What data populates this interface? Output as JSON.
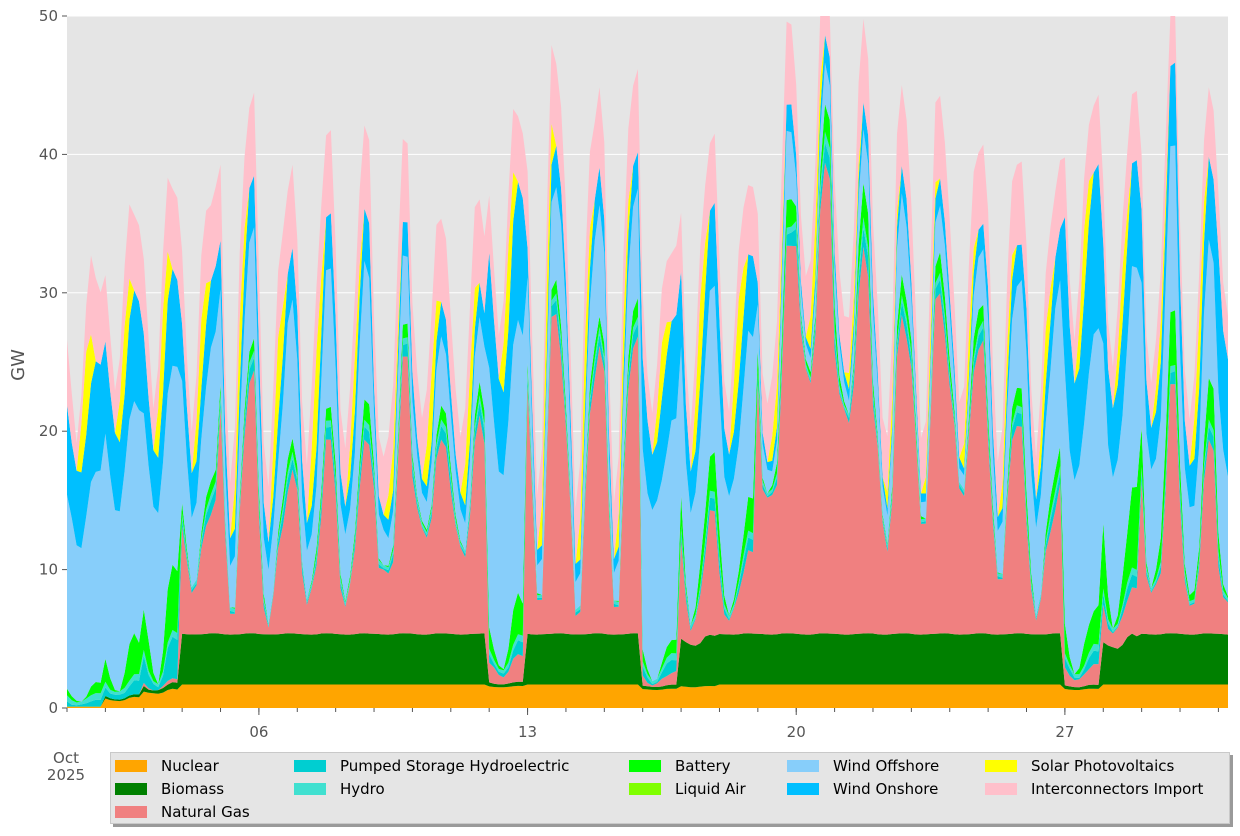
{
  "chart_data": {
    "type": "area",
    "stacked": true,
    "ylabel": "GW",
    "ylim": [
      0,
      50
    ],
    "yticks": [
      0,
      10,
      20,
      30,
      40,
      50
    ],
    "xlim": [
      1,
      31.25
    ],
    "xticks": [
      {
        "day": 6,
        "label": "06"
      },
      {
        "day": 13,
        "label": "13"
      },
      {
        "day": 20,
        "label": "20"
      },
      {
        "day": 27,
        "label": "27"
      }
    ],
    "x_extra_label": {
      "month": "Oct",
      "year": "2025"
    },
    "grid": true,
    "legend_position": "bottom",
    "days": [
      1,
      2,
      3,
      4,
      5,
      6,
      7,
      8,
      9,
      10,
      11,
      12,
      13,
      14,
      15,
      16,
      17,
      18,
      19,
      20,
      21,
      22,
      23,
      24,
      25,
      26,
      27,
      28,
      29,
      30,
      31
    ],
    "series": [
      {
        "name": "Nuclear",
        "color": "#ffa500",
        "daily_low": [
          0.1,
          0.5,
          1.0,
          1.7,
          1.7,
          1.7,
          1.7,
          1.7,
          1.7,
          1.7,
          1.7,
          1.5,
          1.7,
          1.7,
          1.7,
          1.3,
          1.5,
          1.7,
          1.7,
          1.7,
          1.7,
          1.7,
          1.7,
          1.7,
          1.7,
          1.7,
          1.3,
          1.7,
          1.7,
          1.7,
          1.7
        ],
        "daily_high": [
          0.1,
          0.8,
          1.4,
          1.7,
          1.7,
          1.7,
          1.7,
          1.7,
          1.7,
          1.7,
          1.7,
          1.6,
          1.7,
          1.7,
          1.7,
          1.4,
          1.6,
          1.7,
          1.7,
          1.7,
          1.7,
          1.7,
          1.7,
          1.7,
          1.7,
          1.7,
          1.4,
          1.7,
          1.7,
          1.7,
          1.7
        ]
      },
      {
        "name": "Biomass",
        "color": "#008000",
        "daily_low": [
          0.0,
          0.1,
          0.2,
          3.6,
          3.6,
          3.6,
          3.6,
          3.6,
          3.6,
          3.6,
          3.6,
          0.2,
          3.6,
          3.6,
          3.6,
          0.2,
          3.0,
          3.6,
          3.6,
          3.6,
          3.6,
          3.6,
          3.6,
          3.6,
          3.6,
          3.6,
          0.2,
          2.5,
          3.6,
          3.6,
          3.6
        ],
        "daily_high": [
          0.0,
          0.2,
          0.5,
          3.7,
          3.7,
          3.7,
          3.7,
          3.7,
          3.7,
          3.7,
          3.7,
          0.3,
          3.7,
          3.7,
          3.7,
          0.3,
          3.7,
          3.7,
          3.7,
          3.7,
          3.7,
          3.7,
          3.7,
          3.7,
          3.7,
          3.7,
          0.3,
          3.7,
          3.7,
          3.7,
          3.7
        ]
      },
      {
        "name": "Natural Gas",
        "color": "#f08080",
        "daily_low": [
          0.0,
          0.0,
          0.0,
          3.0,
          1.5,
          0.5,
          1.5,
          2.0,
          1.0,
          7.0,
          5.0,
          0.5,
          2.5,
          1.0,
          2.0,
          0.1,
          1.0,
          1.0,
          6.0,
          18.0,
          14.0,
          6.0,
          8.0,
          10.0,
          4.0,
          1.0,
          0.5,
          1.0,
          0.5,
          1.5,
          0.5
        ],
        "daily_high": [
          0.0,
          0.0,
          0.3,
          10.0,
          19.0,
          12.0,
          14.0,
          14.0,
          20.0,
          14.0,
          16.0,
          2.0,
          25.0,
          22.0,
          22.0,
          1.0,
          9.0,
          6.0,
          28.0,
          34.0,
          28.0,
          23.0,
          26.0,
          22.0,
          16.0,
          11.0,
          1.5,
          3.5,
          18.0,
          14.0,
          10.0
        ]
      },
      {
        "name": "Pumped Storage Hydroelectric",
        "color": "#00ced1",
        "daily_low": [
          0.1,
          0.2,
          0.2,
          0.1,
          0.1,
          0.1,
          0.1,
          0.1,
          0.1,
          0.1,
          0.1,
          0.1,
          0.1,
          0.1,
          0.1,
          0.1,
          0.1,
          0.1,
          0.1,
          0.1,
          0.1,
          0.1,
          0.1,
          0.1,
          0.1,
          0.1,
          0.1,
          0.1,
          0.1,
          0.1,
          0.1
        ],
        "daily_high": [
          0.5,
          1.0,
          3.0,
          1.0,
          1.0,
          1.0,
          1.0,
          1.0,
          1.0,
          1.0,
          1.0,
          1.0,
          1.0,
          1.0,
          1.0,
          1.0,
          1.0,
          1.0,
          1.0,
          1.5,
          1.5,
          1.0,
          1.0,
          1.0,
          1.0,
          1.0,
          1.0,
          1.0,
          1.0,
          1.0,
          1.0
        ]
      },
      {
        "name": "Hydro",
        "color": "#40e0d0",
        "daily_low": [
          0.2,
          0.2,
          0.2,
          0.2,
          0.2,
          0.2,
          0.2,
          0.2,
          0.2,
          0.2,
          0.2,
          0.2,
          0.2,
          0.2,
          0.2,
          0.2,
          0.2,
          0.2,
          0.2,
          0.2,
          0.2,
          0.2,
          0.2,
          0.2,
          0.2,
          0.2,
          0.2,
          0.2,
          0.2,
          0.2,
          0.2
        ],
        "daily_high": [
          0.5,
          0.5,
          0.5,
          0.5,
          0.5,
          0.5,
          0.5,
          0.5,
          0.5,
          0.5,
          0.5,
          0.5,
          0.5,
          0.5,
          0.5,
          0.5,
          0.5,
          0.5,
          0.5,
          0.8,
          0.8,
          0.5,
          0.5,
          0.5,
          0.5,
          0.5,
          0.5,
          0.5,
          0.5,
          0.5,
          0.5
        ]
      },
      {
        "name": "Battery",
        "color": "#00ff00",
        "daily_low": [
          0.0,
          0.0,
          0.0,
          0.0,
          0.0,
          0.0,
          0.0,
          0.0,
          0.0,
          0.0,
          0.0,
          0.0,
          0.0,
          0.0,
          0.0,
          0.0,
          0.0,
          0.0,
          0.0,
          0.0,
          0.0,
          0.0,
          0.0,
          0.0,
          0.0,
          0.0,
          0.0,
          0.0,
          0.0,
          0.0,
          0.0
        ],
        "daily_high": [
          0.8,
          3.0,
          5.0,
          1.0,
          1.0,
          1.0,
          1.0,
          1.5,
          1.0,
          1.0,
          1.0,
          3.0,
          1.0,
          1.0,
          1.5,
          1.0,
          3.0,
          2.5,
          2.0,
          2.0,
          2.5,
          1.5,
          1.5,
          1.5,
          1.5,
          1.5,
          3.0,
          6.0,
          4.0,
          3.0,
          2.0
        ]
      },
      {
        "name": "Liquid Air",
        "color": "#7fff00",
        "daily_low": [
          0,
          0,
          0,
          0,
          0,
          0,
          0,
          0,
          0,
          0,
          0,
          0,
          0,
          0,
          0,
          0,
          0,
          0,
          0,
          0,
          0,
          0,
          0,
          0,
          0,
          0,
          0,
          0,
          0,
          0,
          0
        ],
        "daily_high": [
          0,
          0,
          0,
          0,
          0,
          0,
          0,
          0,
          0,
          0,
          0,
          0,
          0,
          0,
          0,
          0,
          0,
          0,
          0,
          0,
          0,
          0,
          0,
          0,
          0,
          0,
          0,
          0,
          0,
          0,
          0
        ]
      },
      {
        "name": "Wind Offshore",
        "color": "#87cefa",
        "daily_low": [
          11.0,
          13.0,
          12.0,
          5.0,
          3.0,
          3.0,
          3.0,
          4.0,
          2.0,
          2.0,
          2.0,
          14.0,
          2.0,
          2.0,
          2.0,
          12.0,
          8.0,
          8.0,
          1.0,
          1.0,
          1.0,
          2.0,
          1.0,
          1.0,
          3.0,
          6.0,
          14.0,
          10.0,
          8.0,
          6.0,
          8.0
        ],
        "daily_high": [
          16.0,
          17.0,
          15.0,
          10.0,
          8.0,
          10.0,
          10.0,
          10.0,
          5.0,
          5.0,
          5.0,
          20.0,
          8.0,
          8.0,
          8.0,
          16.0,
          12.0,
          12.0,
          5.0,
          3.0,
          4.0,
          6.0,
          4.0,
          4.0,
          8.0,
          12.0,
          20.0,
          16.0,
          12.0,
          10.0,
          12.0
        ]
      },
      {
        "name": "Wind Onshore",
        "color": "#00bfff",
        "daily_low": [
          5.0,
          5.0,
          4.0,
          3.0,
          2.0,
          2.0,
          2.0,
          2.0,
          1.0,
          1.0,
          1.0,
          6.0,
          1.0,
          1.0,
          1.0,
          4.0,
          3.0,
          3.0,
          0.5,
          0.5,
          0.5,
          0.5,
          0.5,
          0.5,
          1.0,
          2.0,
          7.0,
          5.0,
          3.0,
          3.0,
          8.0
        ],
        "daily_high": [
          8.0,
          8.0,
          7.0,
          5.0,
          4.0,
          4.0,
          4.0,
          4.0,
          2.5,
          2.5,
          2.5,
          10.0,
          3.0,
          3.0,
          3.0,
          8.0,
          6.0,
          6.0,
          2.0,
          2.0,
          2.0,
          2.0,
          2.0,
          2.0,
          3.0,
          4.0,
          12.0,
          8.0,
          6.0,
          6.0,
          12.0
        ]
      },
      {
        "name": "Solar Photovoltaics",
        "color": "#ffff00",
        "daily_low": [
          0,
          0,
          0,
          0,
          0,
          0,
          0,
          0,
          0,
          0,
          0,
          0,
          0,
          0,
          0,
          0,
          0,
          0,
          0,
          0,
          0,
          0,
          0,
          0,
          0,
          0,
          0,
          0,
          0,
          0,
          0
        ],
        "daily_high": [
          6.0,
          5.0,
          6.0,
          5.0,
          5.0,
          6.0,
          7.0,
          4.0,
          3.0,
          5.0,
          5.0,
          6.0,
          5.0,
          5.0,
          4.0,
          4.0,
          6.0,
          6.0,
          3.0,
          4.0,
          2.0,
          2.0,
          2.0,
          3.0,
          3.0,
          4.0,
          5.0,
          4.0,
          3.0,
          5.0,
          5.0
        ]
      },
      {
        "name": "Interconnectors Import",
        "color": "#ffc0cb",
        "daily_low": [
          2.0,
          3.0,
          3.0,
          3.0,
          4.0,
          4.0,
          4.0,
          4.0,
          4.0,
          4.0,
          4.0,
          3.0,
          4.0,
          4.0,
          4.0,
          3.0,
          3.0,
          3.0,
          4.0,
          4.0,
          4.0,
          4.0,
          4.0,
          4.0,
          4.0,
          3.0,
          3.0,
          3.0,
          3.0,
          3.0,
          3.0
        ],
        "daily_high": [
          6.0,
          6.0,
          6.0,
          6.0,
          6.0,
          6.0,
          6.0,
          6.0,
          6.0,
          6.0,
          6.0,
          5.0,
          6.0,
          6.0,
          6.0,
          5.0,
          5.0,
          5.0,
          6.0,
          6.0,
          6.0,
          6.0,
          6.0,
          6.0,
          6.0,
          5.0,
          5.0,
          5.0,
          5.0,
          5.0,
          5.0
        ]
      }
    ]
  }
}
